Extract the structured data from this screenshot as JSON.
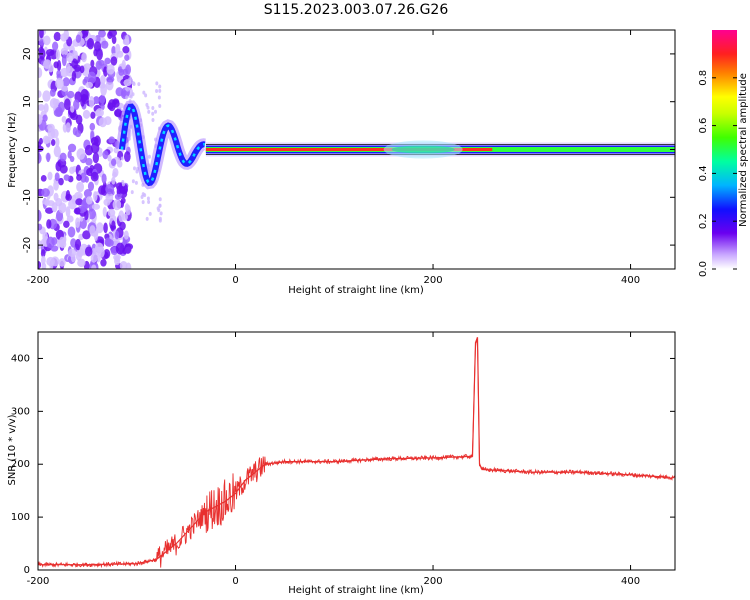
{
  "title": "S115.2023.003.07.26.G26",
  "colors": {
    "snr_line": "#e8302f",
    "colormap": [
      "#d8c2ff",
      "#9a63ff",
      "#6a00f0",
      "#1010ff",
      "#00c0ff",
      "#00ff60",
      "#a0ff00",
      "#ffff00",
      "#ff9000",
      "#ff2020",
      "#ff00a0"
    ]
  },
  "chart_data": [
    {
      "type": "heatmap",
      "title": "S115.2023.003.07.26.G26",
      "xlabel": "Height of straight line (km)",
      "ylabel": "Frequency (Hz)",
      "xlim": [
        -200,
        445
      ],
      "ylim": [
        -25,
        25
      ],
      "xticks": [
        -200,
        0,
        200,
        400
      ],
      "yticks": [
        20,
        10,
        0,
        -10,
        -20
      ],
      "colorbar": {
        "label": "Normalized spectral amplitude",
        "range": [
          0,
          1
        ],
        "ticks": [
          0.0,
          0.2,
          0.4,
          0.6,
          0.8
        ]
      },
      "features": {
        "noise_region_km": [
          -200,
          -115
        ],
        "oscillation_region_km": [
          -115,
          -30
        ],
        "stable_line_frequency_hz": 0,
        "stable_line_start_km": -30,
        "broadening_region_km": [
          150,
          230
        ]
      }
    },
    {
      "type": "line",
      "xlabel": "Height of straight line (km)",
      "ylabel": "SNR (10 * v/v)",
      "xlim": [
        -200,
        445
      ],
      "ylim": [
        0,
        450
      ],
      "xticks": [
        -200,
        0,
        200,
        400
      ],
      "yticks": [
        0,
        100,
        200,
        300,
        400
      ],
      "x": [
        -200,
        -150,
        -100,
        -80,
        -60,
        -40,
        -30,
        -20,
        -10,
        0,
        10,
        20,
        30,
        50,
        100,
        150,
        200,
        240,
        243,
        245,
        247,
        250,
        300,
        350,
        400,
        440
      ],
      "y": [
        10,
        10,
        12,
        20,
        50,
        90,
        110,
        120,
        130,
        145,
        170,
        185,
        200,
        205,
        205,
        210,
        212,
        215,
        430,
        440,
        200,
        190,
        185,
        185,
        180,
        175
      ]
    }
  ]
}
